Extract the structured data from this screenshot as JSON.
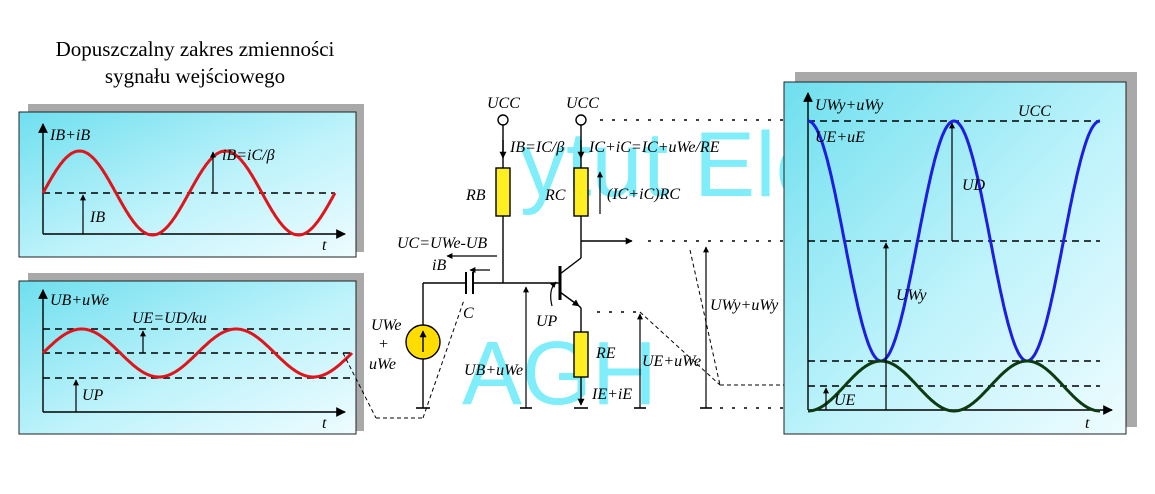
{
  "title": {
    "line1": "Dopuszczalny zakres zmienności",
    "line2": "sygnału wejściowego"
  },
  "watermark": {
    "top": "ytut Elektr",
    "bottom": "AGH"
  },
  "colors": {
    "panel_gradient_start": "#6fdfee",
    "panel_gradient_end": "#e9fbff",
    "panel_shadow": "#a9a9a9",
    "base_current": "#e0141b",
    "output_voltage": "#1e1ee0",
    "emitter_voltage": "#0e3a12",
    "resistor_fill": "#ffee22",
    "source_fill": "#ffdd00",
    "watermark": "#7feefa"
  },
  "panel_base_current": {
    "y_label": "IB+iB",
    "amplitude_label": "iB=iC/β",
    "dc_label": "IB",
    "t_label": "t",
    "waveform": {
      "cycles": 2,
      "dc_level": 0.5,
      "amplitude": 0.45
    }
  },
  "panel_input_voltage": {
    "y_label": "UB+uWe",
    "amplitude_label": "UE=UD/ku",
    "dc_label": "UP",
    "t_label": "t",
    "waveform": {
      "cycles": 2
    }
  },
  "panel_output": {
    "y_label": "UWy+uWy",
    "ue_curve_label": "UE+uE",
    "ucc_label": "UCC",
    "ud_label": "UD",
    "uwy_label": "UWy",
    "ue_label": "UE",
    "t_label": "t",
    "waveform": {
      "cycles": 2
    }
  },
  "circuit": {
    "ucc_left": "UCC",
    "ucc_right": "UCC",
    "ib_eq": "IB=IC/β",
    "ic_eq": "IC+iC=IC+uWe/RE",
    "rb": "RB",
    "rc": "RC",
    "rc_drop": "(IC+iC)RC",
    "uc_eq": "UC=UWe-UB",
    "ib_small": "iB",
    "capacitor": "C",
    "up": "UP",
    "source_label_1": "UWe",
    "source_label_2": "+",
    "source_label_3": "uWe",
    "ub_label": "UB+uWe",
    "re": "RE",
    "ie_label": "IE+iE",
    "ue_label": "UE+uWe",
    "uwy_label": "UWy+uWy"
  }
}
